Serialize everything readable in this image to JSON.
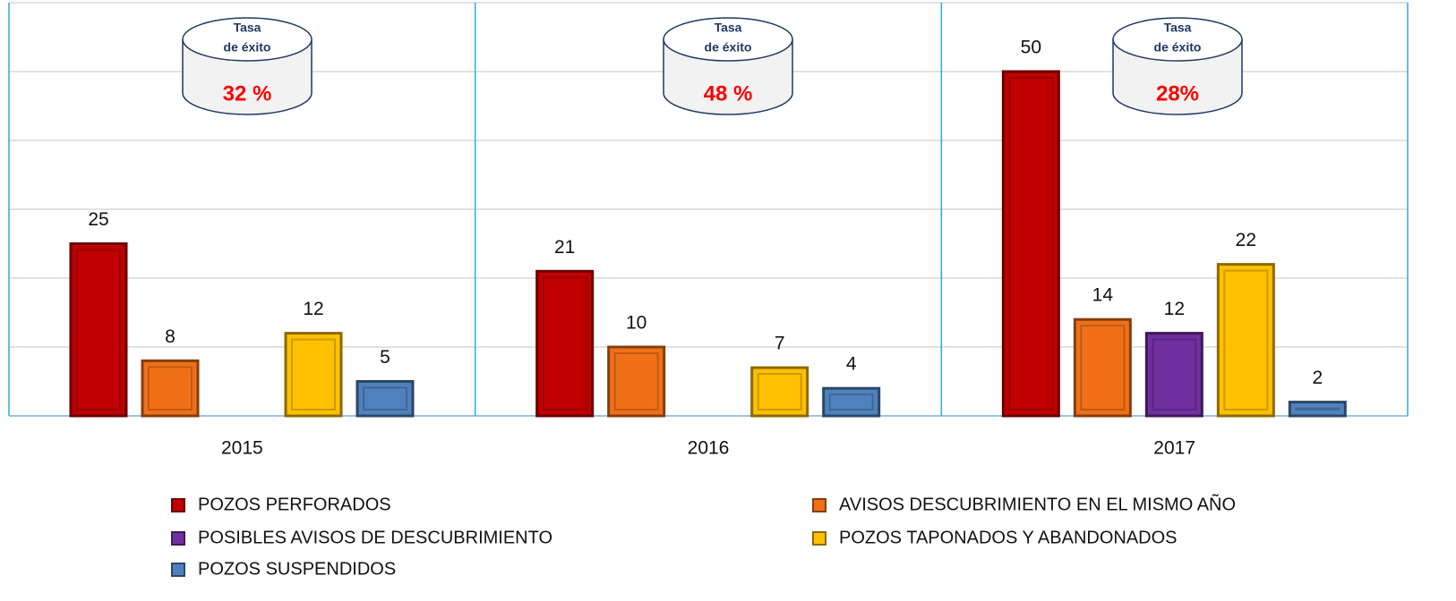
{
  "chart_data": {
    "type": "bar",
    "categories": [
      "2015",
      "2016",
      "2017"
    ],
    "series": [
      {
        "name": "POZOS PERFORADOS",
        "color": "#c00000",
        "values": [
          25,
          21,
          50
        ]
      },
      {
        "name": "AVISOS DESCUBRIMIENTO EN EL MISMO AÑO",
        "color": "#f07018",
        "values": [
          8,
          10,
          14
        ]
      },
      {
        "name": "POSIBLES AVISOS DE DESCUBRIMIENTO",
        "color": "#7030a0",
        "values": [
          null,
          null,
          12
        ]
      },
      {
        "name": "POZOS TAPONADOS Y ABANDONADOS",
        "color": "#ffc000",
        "values": [
          12,
          7,
          22
        ]
      },
      {
        "name": "POZOS SUSPENDIDOS",
        "color": "#4f81bd",
        "values": [
          5,
          4,
          2
        ]
      }
    ],
    "ylim": [
      0,
      60
    ],
    "yticks": [
      0,
      10,
      20,
      30,
      40,
      50,
      60
    ],
    "grid": true,
    "annotations": [
      {
        "lines": [
          "Tasa",
          "de éxito"
        ],
        "rate": "32 %"
      },
      {
        "lines": [
          "Tasa",
          "de éxito"
        ],
        "rate": "48 %"
      },
      {
        "lines": [
          "Tasa",
          "de éxito"
        ],
        "rate": "28%"
      }
    ]
  }
}
